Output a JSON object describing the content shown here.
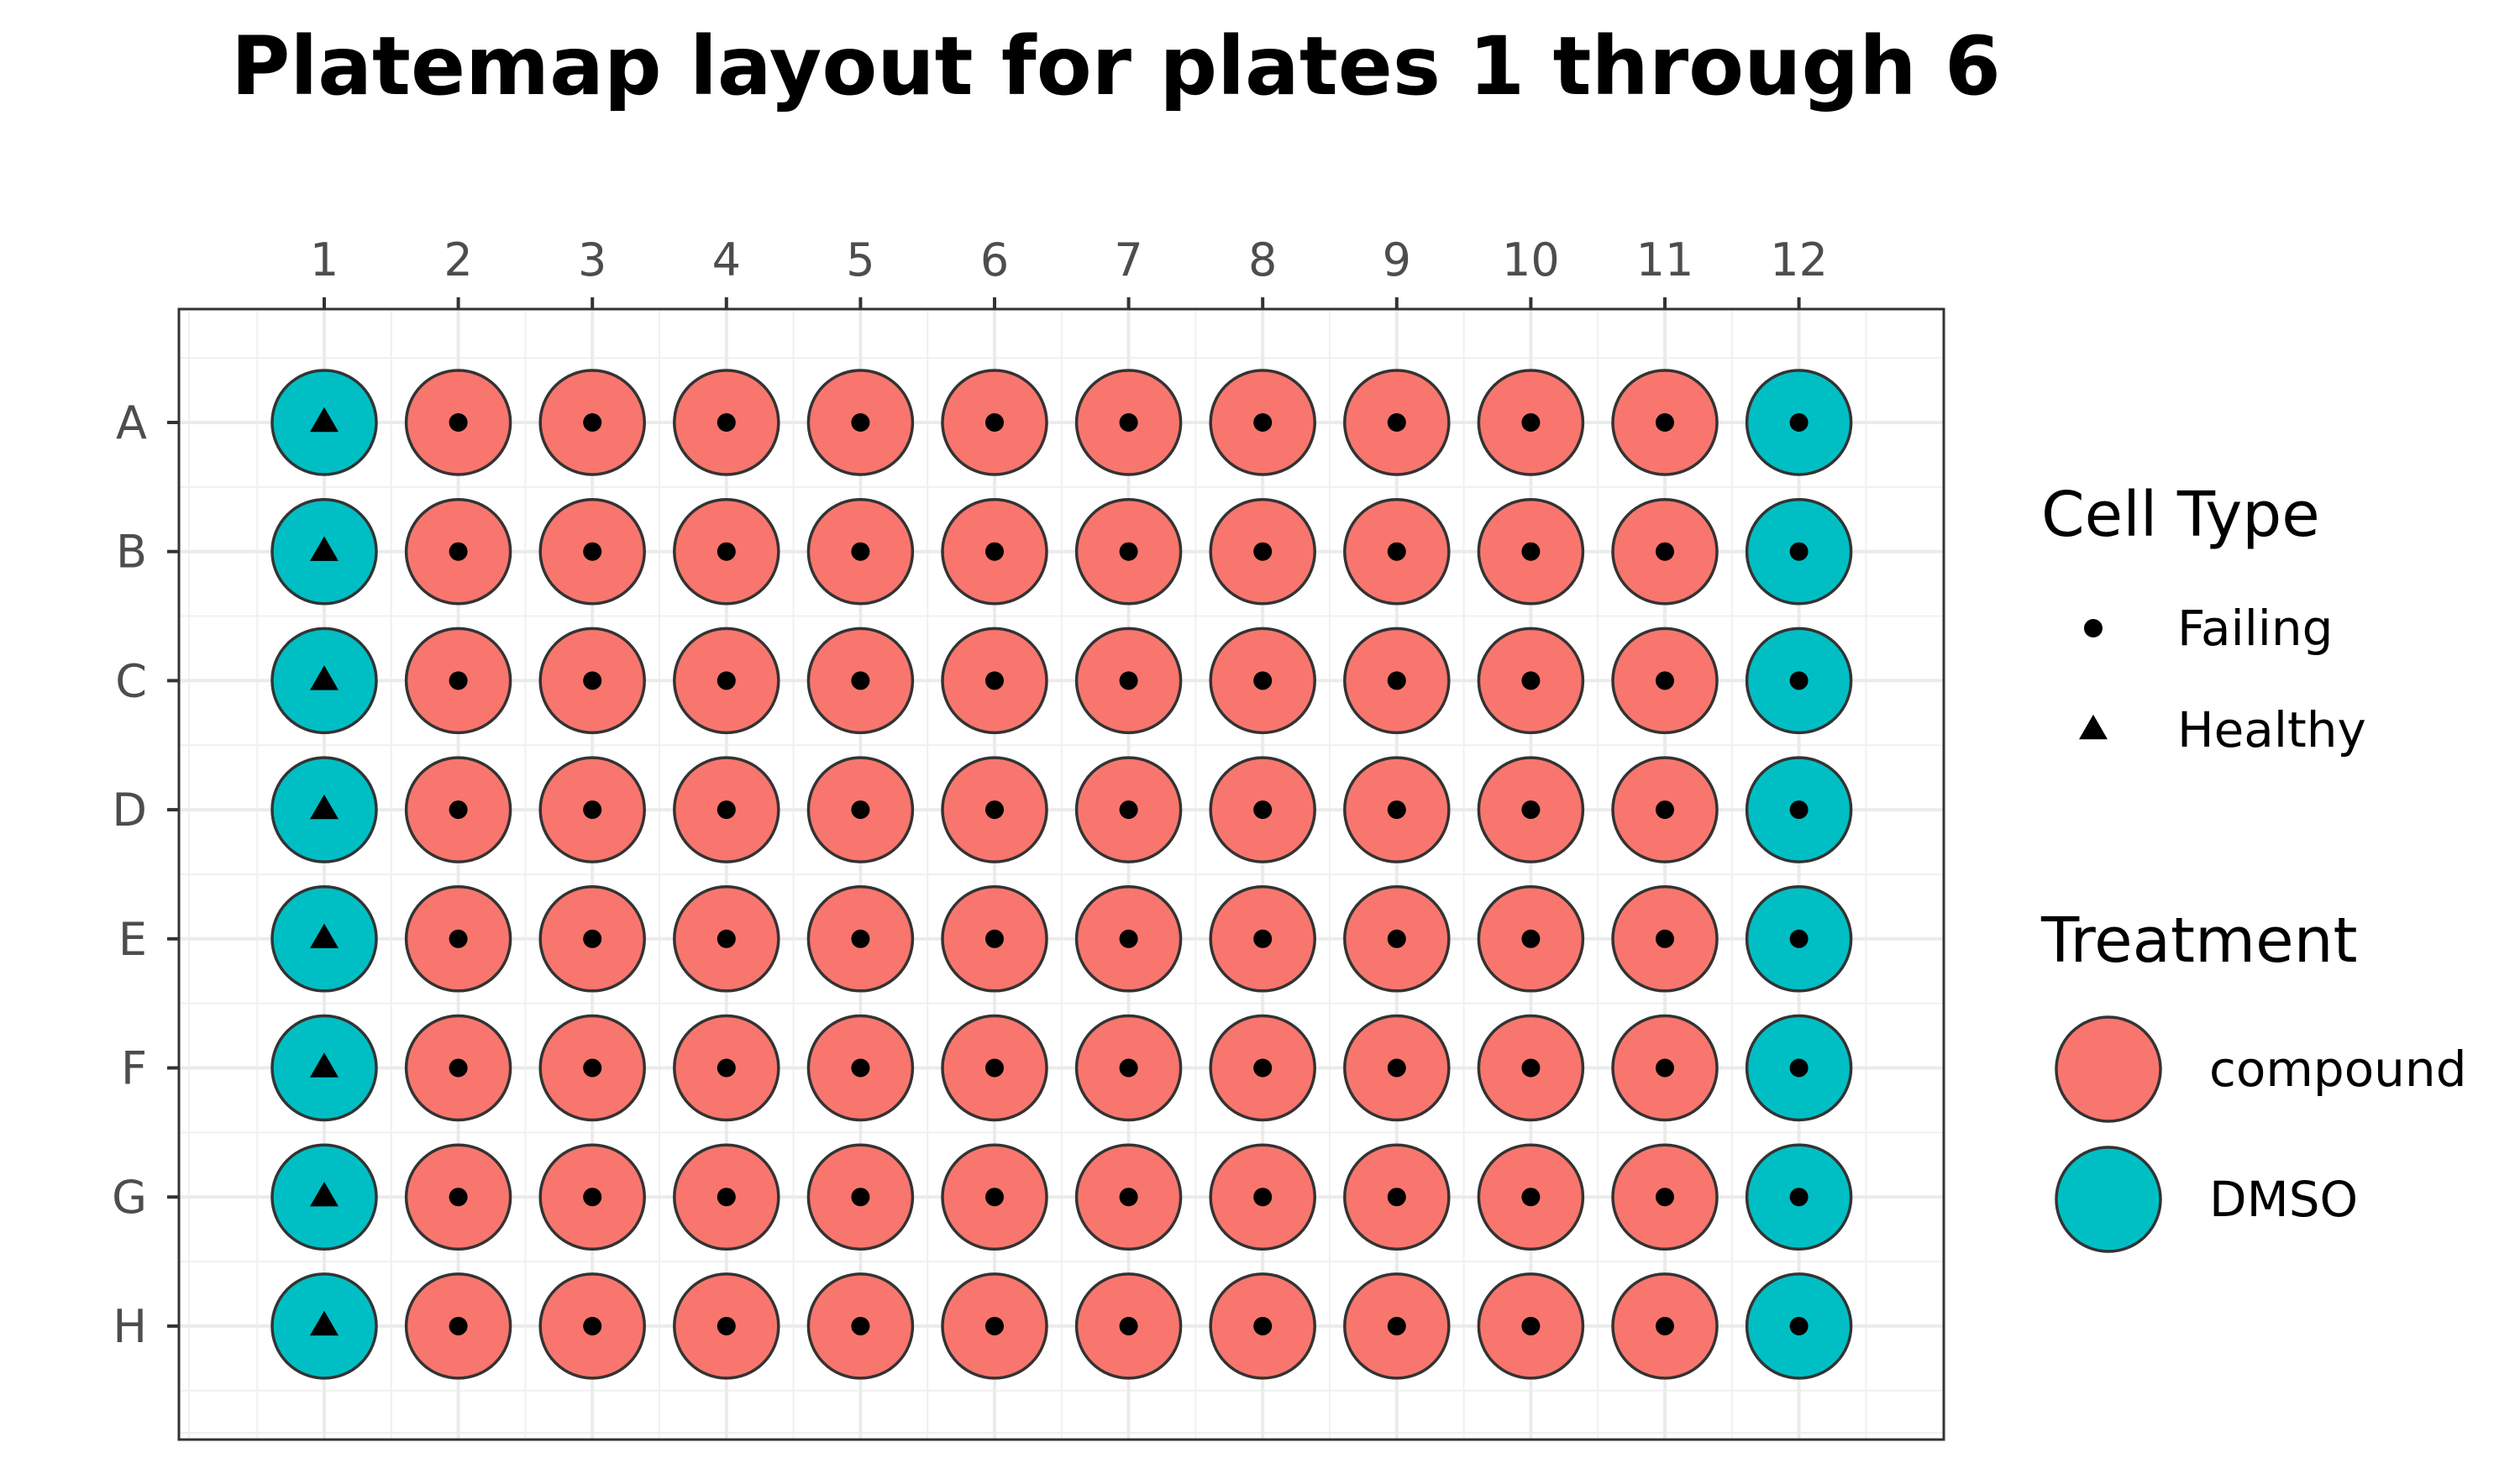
{
  "chart_data": {
    "type": "scatter",
    "title": "Platemap layout for plates 1 through 6",
    "xlabel": "",
    "ylabel": "",
    "columns": [
      "1",
      "2",
      "3",
      "4",
      "5",
      "6",
      "7",
      "8",
      "9",
      "10",
      "11",
      "12"
    ],
    "rows": [
      "A",
      "B",
      "C",
      "D",
      "E",
      "F",
      "G",
      "H"
    ],
    "x_axis_position": "top",
    "grid": true,
    "legend_position": "right",
    "legends": {
      "cell_type": {
        "title": "Cell Type",
        "entries": [
          {
            "label": "Failing",
            "shape": "circle"
          },
          {
            "label": "Healthy",
            "shape": "triangle"
          }
        ]
      },
      "treatment": {
        "title": "Treatment",
        "entries": [
          {
            "label": "compound",
            "color": "#F8766D"
          },
          {
            "label": "DMSO",
            "color": "#00BFC4"
          }
        ]
      }
    },
    "wells": {
      "A": [
        "DMSO|Healthy",
        "compound|Failing",
        "compound|Failing",
        "compound|Failing",
        "compound|Failing",
        "compound|Failing",
        "compound|Failing",
        "compound|Failing",
        "compound|Failing",
        "compound|Failing",
        "compound|Failing",
        "DMSO|Failing"
      ],
      "B": [
        "DMSO|Healthy",
        "compound|Failing",
        "compound|Failing",
        "compound|Failing",
        "compound|Failing",
        "compound|Failing",
        "compound|Failing",
        "compound|Failing",
        "compound|Failing",
        "compound|Failing",
        "compound|Failing",
        "DMSO|Failing"
      ],
      "C": [
        "DMSO|Healthy",
        "compound|Failing",
        "compound|Failing",
        "compound|Failing",
        "compound|Failing",
        "compound|Failing",
        "compound|Failing",
        "compound|Failing",
        "compound|Failing",
        "compound|Failing",
        "compound|Failing",
        "DMSO|Failing"
      ],
      "D": [
        "DMSO|Healthy",
        "compound|Failing",
        "compound|Failing",
        "compound|Failing",
        "compound|Failing",
        "compound|Failing",
        "compound|Failing",
        "compound|Failing",
        "compound|Failing",
        "compound|Failing",
        "compound|Failing",
        "DMSO|Failing"
      ],
      "E": [
        "DMSO|Healthy",
        "compound|Failing",
        "compound|Failing",
        "compound|Failing",
        "compound|Failing",
        "compound|Failing",
        "compound|Failing",
        "compound|Failing",
        "compound|Failing",
        "compound|Failing",
        "compound|Failing",
        "DMSO|Failing"
      ],
      "F": [
        "DMSO|Healthy",
        "compound|Failing",
        "compound|Failing",
        "compound|Failing",
        "compound|Failing",
        "compound|Failing",
        "compound|Failing",
        "compound|Failing",
        "compound|Failing",
        "compound|Failing",
        "compound|Failing",
        "DMSO|Failing"
      ],
      "G": [
        "DMSO|Healthy",
        "compound|Failing",
        "compound|Failing",
        "compound|Failing",
        "compound|Failing",
        "compound|Failing",
        "compound|Failing",
        "compound|Failing",
        "compound|Failing",
        "compound|Failing",
        "compound|Failing",
        "DMSO|Failing"
      ],
      "H": [
        "DMSO|Healthy",
        "compound|Failing",
        "compound|Failing",
        "compound|Failing",
        "compound|Failing",
        "compound|Failing",
        "compound|Failing",
        "compound|Failing",
        "compound|Failing",
        "compound|Failing",
        "compound|Failing",
        "DMSO|Failing"
      ]
    }
  }
}
